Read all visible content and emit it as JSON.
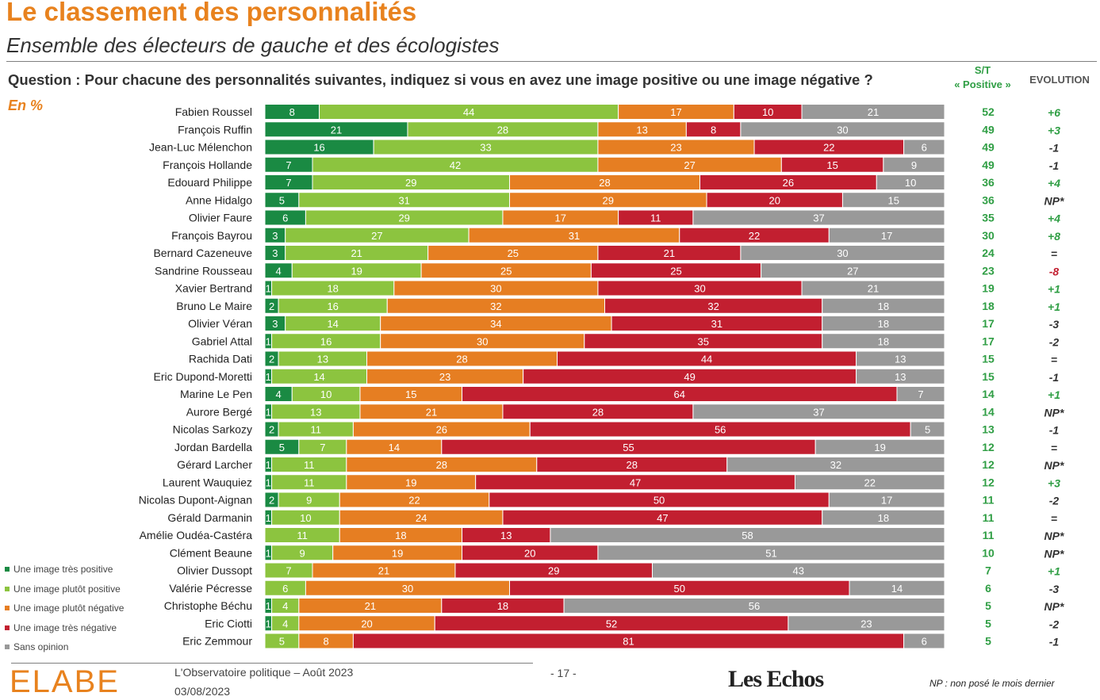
{
  "header": {
    "title": "Le classement des personnalités",
    "subtitle": "Ensemble des électeurs de gauche et des écologistes",
    "question": "Question : Pour chacune des personnalités suivantes, indiquez si vous en avez une image positive ou une image négative ?",
    "unit": "En %",
    "st_header_line1": "S/T",
    "st_header_line2": "« Positive »",
    "evolution_header": "EVOLUTION"
  },
  "colors": {
    "tres_positive": "#1a8a43",
    "plutot_positive": "#8cc43f",
    "plutot_negative": "#e67e22",
    "tres_negative": "#c21f30",
    "sans_opinion": "#999999",
    "st_green": "#2f9e44",
    "evo_positive": "#2f9e44",
    "evo_negative": "#c21f30",
    "evo_neutral": "#333333"
  },
  "legend": [
    {
      "label": "Une image très positive",
      "color": "#1a8a43"
    },
    {
      "label": "Une image plutôt positive",
      "color": "#8cc43f"
    },
    {
      "label": "Une image plutôt négative",
      "color": "#e67e22"
    },
    {
      "label": "Une image très négative",
      "color": "#c21f30"
    },
    {
      "label": "Sans opinion",
      "color": "#999999"
    }
  ],
  "chart_data": {
    "type": "bar",
    "orientation": "horizontal-stacked",
    "categories": [
      "Fabien Roussel",
      "François Ruffin",
      "Jean-Luc Mélenchon",
      "François Hollande",
      "Edouard Philippe",
      "Anne Hidalgo",
      "Olivier Faure",
      "François Bayrou",
      "Bernard Cazeneuve",
      "Sandrine Rousseau",
      "Xavier Bertrand",
      "Bruno Le Maire",
      "Olivier Véran",
      "Gabriel Attal",
      "Rachida Dati",
      "Eric Dupond-Moretti",
      "Marine Le Pen",
      "Aurore Bergé",
      "Nicolas Sarkozy",
      "Jordan Bardella",
      "Gérard Larcher",
      "Laurent Wauquiez",
      "Nicolas Dupont-Aignan",
      "Gérald Darmanin",
      "Amélie Oudéa-Castéra",
      "Clément Beaune",
      "Olivier Dussopt",
      "Valérie Pécresse",
      "Christophe Béchu",
      "Eric Ciotti",
      "Eric Zemmour"
    ],
    "series": [
      {
        "name": "Une image très positive",
        "values": [
          8,
          21,
          16,
          7,
          7,
          5,
          6,
          3,
          3,
          4,
          1,
          2,
          3,
          1,
          2,
          1,
          4,
          1,
          2,
          5,
          1,
          1,
          2,
          1,
          0,
          1,
          0,
          0,
          1,
          1,
          0
        ]
      },
      {
        "name": "Une image plutôt positive",
        "values": [
          44,
          28,
          33,
          42,
          29,
          31,
          29,
          27,
          21,
          19,
          18,
          16,
          14,
          16,
          13,
          14,
          10,
          13,
          11,
          7,
          11,
          11,
          9,
          10,
          11,
          9,
          7,
          6,
          4,
          4,
          5
        ]
      },
      {
        "name": "Une image plutôt négative",
        "values": [
          17,
          13,
          23,
          27,
          28,
          29,
          17,
          31,
          25,
          25,
          30,
          32,
          34,
          30,
          28,
          23,
          15,
          21,
          26,
          14,
          28,
          19,
          22,
          24,
          18,
          19,
          21,
          30,
          21,
          20,
          8
        ]
      },
      {
        "name": "Une image très négative",
        "values": [
          10,
          8,
          22,
          15,
          26,
          20,
          11,
          22,
          21,
          25,
          30,
          32,
          31,
          35,
          44,
          49,
          64,
          28,
          56,
          55,
          28,
          47,
          50,
          47,
          13,
          20,
          29,
          50,
          18,
          52,
          81
        ]
      },
      {
        "name": "Sans opinion",
        "values": [
          21,
          30,
          6,
          9,
          10,
          15,
          37,
          17,
          30,
          27,
          21,
          18,
          18,
          18,
          13,
          13,
          7,
          37,
          5,
          19,
          32,
          22,
          17,
          18,
          58,
          51,
          43,
          14,
          56,
          23,
          6
        ]
      }
    ],
    "st_positive": [
      52,
      49,
      49,
      49,
      36,
      36,
      35,
      30,
      24,
      23,
      19,
      18,
      17,
      17,
      15,
      15,
      14,
      14,
      13,
      12,
      12,
      12,
      11,
      11,
      11,
      10,
      7,
      6,
      5,
      5,
      5
    ],
    "evolution": [
      "+6",
      "+3",
      "-1",
      "-1",
      "+4",
      "NP*",
      "+4",
      "+8",
      "=",
      "-8",
      "+1",
      "+1",
      "-3",
      "-2",
      "=",
      "-1",
      "+1",
      "NP*",
      "-1",
      "=",
      "NP*",
      "+3",
      "-2",
      "=",
      "NP*",
      "NP*",
      "+1",
      "-3",
      "NP*",
      "-2",
      "-1"
    ],
    "xlim": [
      0,
      100
    ]
  },
  "footer": {
    "logo": "ELABE",
    "publication": "L'Observatoire politique – Août 2023",
    "date": "03/08/2023",
    "page": "- 17 -",
    "brand": "Les Echos",
    "note": "NP : non posé le mois dernier"
  }
}
